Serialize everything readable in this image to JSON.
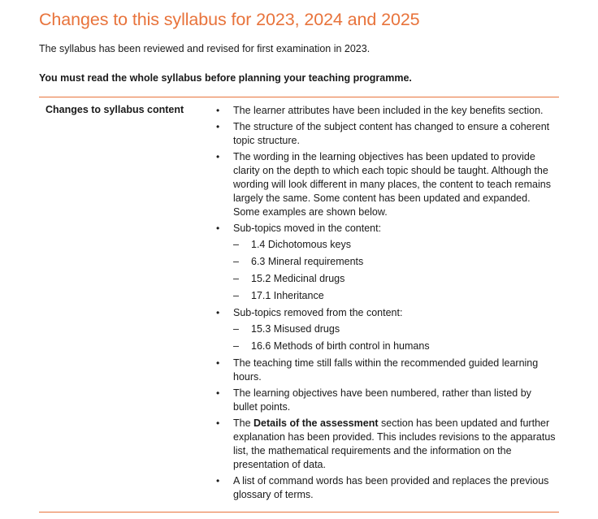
{
  "title": "Changes to this syllabus for 2023, 2024 and 2025",
  "intro": "The syllabus has been reviewed and revised for first examination in 2023.",
  "must_read": "You must read the whole syllabus before planning your teaching programme.",
  "row_label": "Changes to syllabus content",
  "items": {
    "i0": "The learner attributes have been included in the key benefits section.",
    "i1": "The structure of the subject content has changed to ensure a coherent topic structure.",
    "i2": "The wording in the learning objectives has been updated to provide clarity on the depth to which each topic should be taught. Although the wording will look different in many places, the content to teach remains largely the same. Some content has been updated and expanded. Some examples are shown below.",
    "i3": "Sub-topics moved in the content:",
    "i3_sub": [
      "1.4 Dichotomous keys",
      "6.3 Mineral requirements",
      "15.2 Medicinal drugs",
      "17.1 Inheritance"
    ],
    "i4": "Sub-topics removed from the content:",
    "i4_sub": [
      "15.3 Misused drugs",
      "16.6 Methods of birth control in humans"
    ],
    "i5": "The teaching time still falls within the recommended guided learning hours.",
    "i6": "The learning objectives have been numbered, rather than listed by bullet points.",
    "i7_pre": "The ",
    "i7_bold": "Details of the assessment",
    "i7_post": " section has been updated and further explanation has been provided. This includes revisions to the apparatus list, the mathematical requirements and the information on the presentation of data.",
    "i8": "A list of command words has been provided and replaces the previous glossary of terms."
  },
  "bullet_glyph": "•",
  "dash_glyph": "–",
  "colors": {
    "accent": "#e8733b",
    "text": "#1a1a1a"
  }
}
